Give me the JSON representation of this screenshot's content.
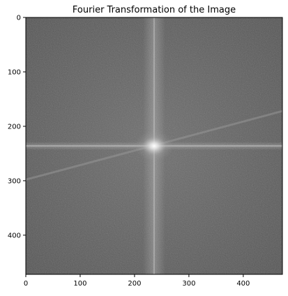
{
  "chart_data": {
    "type": "heatmap",
    "title": "Fourier Transformation of the Image",
    "xlabel": "",
    "ylabel": "",
    "xlim": [
      0,
      472
    ],
    "ylim": [
      472,
      0
    ],
    "x_ticks": [
      0,
      100,
      200,
      300,
      400
    ],
    "y_ticks": [
      0,
      100,
      200,
      300,
      400
    ],
    "grid": false,
    "colormap": "gray",
    "content": "log-magnitude spectrum, centered, with bright DC peak",
    "spectrum_center": [
      236,
      236
    ],
    "diagonal_streak": {
      "from": [
        0,
        298
      ],
      "to": [
        472,
        172
      ]
    },
    "colors": {
      "background_mid": "#5f5f5f",
      "center_peak": "#ffffff",
      "frame": "#000000"
    }
  }
}
